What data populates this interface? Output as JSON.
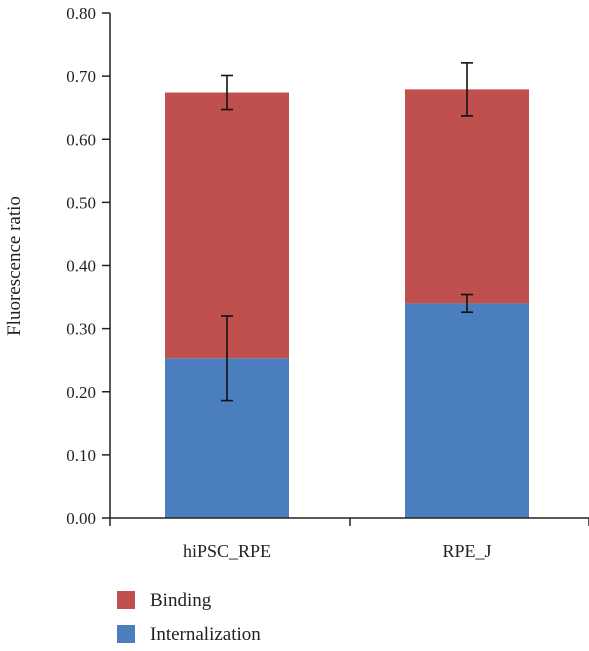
{
  "chart_data": {
    "type": "bar",
    "stacked": true,
    "title": "",
    "xlabel": "",
    "ylabel": "Fluorescence ratio",
    "ylim": [
      0,
      0.8
    ],
    "yticks": [
      "0.00",
      "0.10",
      "0.20",
      "0.30",
      "0.40",
      "0.50",
      "0.60",
      "0.70",
      "0.80"
    ],
    "categories": [
      "hiPSC_RPE",
      "RPE_J"
    ],
    "series": [
      {
        "name": "Internalization",
        "color": "#4a7ebf",
        "values": [
          0.253,
          0.34
        ],
        "error": [
          0.067,
          0.014
        ]
      },
      {
        "name": "Binding",
        "color": "#c0504d",
        "values": [
          0.421,
          0.339
        ],
        "error": [
          0.027,
          0.042
        ]
      }
    ],
    "legend": {
      "position": "bottom-left",
      "order": [
        "Binding",
        "Internalization"
      ]
    },
    "grid": false
  }
}
